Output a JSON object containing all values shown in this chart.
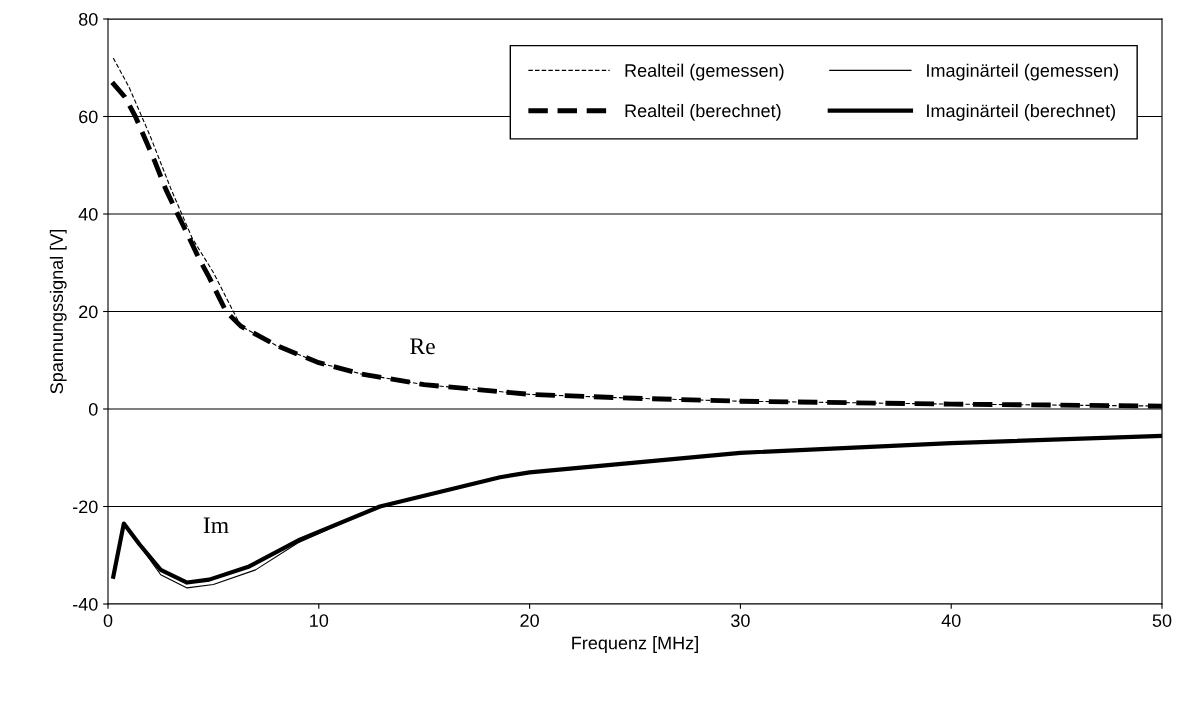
{
  "chart_data": {
    "type": "line",
    "xlabel": "Frequenz [MHz]",
    "ylabel": "Spannungssignal [V]",
    "xlim": [
      0,
      50
    ],
    "ylim": [
      -40,
      80
    ],
    "xticks": [
      0,
      10,
      20,
      30,
      40,
      50
    ],
    "yticks": [
      -40,
      -20,
      0,
      20,
      40,
      60,
      80
    ],
    "grid": "y",
    "legend": "top right",
    "series": [
      {
        "name": "Realteil (gemessen)",
        "color": "#000000",
        "line_style": "dashed",
        "x": [
          0.25,
          1,
          2,
          3,
          4,
          5,
          6.3,
          8,
          10,
          12,
          15,
          20,
          25,
          30,
          40,
          50
        ],
        "values": [
          72,
          66,
          56,
          45,
          35,
          28,
          17,
          13,
          9.5,
          7.2,
          5,
          3,
          2.2,
          1.6,
          1,
          0.6
        ]
      },
      {
        "name": "Realteil (berechnet)",
        "color": "#000000",
        "line_style": "dashed",
        "x": [
          0.2,
          0.8,
          1.3,
          1.7,
          2.2,
          2.75,
          3.3,
          3.8,
          4.3,
          4.8,
          5.6,
          6.3,
          8,
          10,
          12,
          15,
          20,
          25,
          30,
          40,
          50
        ],
        "values": [
          67,
          64,
          60,
          56,
          51,
          45,
          40,
          35.6,
          31,
          27,
          20,
          17,
          13,
          9.5,
          7.2,
          5,
          3,
          2.2,
          1.6,
          1,
          0.6
        ]
      },
      {
        "name": "Imaginärteil (gemessen)",
        "color": "#000000",
        "line_style": "solid",
        "x": [
          0.25,
          0.75,
          1.5,
          2.5,
          3.75,
          5,
          7,
          9,
          12.9,
          18.6,
          20,
          25,
          30,
          40,
          50
        ],
        "values": [
          -34.4,
          -23.5,
          -28,
          -34,
          -36.7,
          -36,
          -33,
          -27.5,
          -20,
          -14,
          -13,
          -11,
          -9,
          -7,
          -5.5
        ]
      },
      {
        "name": "Imaginärteil (berechnet)",
        "color": "#000000",
        "line_style": "solid",
        "x": [
          0.25,
          0.75,
          1.5,
          2.5,
          3.75,
          4.8,
          6.7,
          9.1,
          12.9,
          18.6,
          20,
          25,
          30,
          40,
          50
        ],
        "values": [
          -34.4,
          -23.5,
          -27.8,
          -33,
          -35.6,
          -35,
          -32.3,
          -26.8,
          -20,
          -14,
          -13,
          -11,
          -9,
          -7,
          -5.5
        ]
      }
    ],
    "annotations": [
      "Re",
      "Im"
    ]
  }
}
